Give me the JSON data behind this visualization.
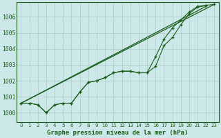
{
  "title": "Graphe pression niveau de la mer (hPa)",
  "bg_color": "#cde8e8",
  "grid_color": "#b0d0d0",
  "line_color": "#1a5c1a",
  "xlim": [
    -0.5,
    23.5
  ],
  "ylim": [
    999.4,
    1006.9
  ],
  "yticks": [
    1000,
    1001,
    1002,
    1003,
    1004,
    1005,
    1006
  ],
  "xticks": [
    0,
    1,
    2,
    3,
    4,
    5,
    6,
    7,
    8,
    9,
    10,
    11,
    12,
    13,
    14,
    15,
    16,
    17,
    18,
    19,
    20,
    21,
    22,
    23
  ],
  "x_labels": [
    "0",
    "1",
    "2",
    "3",
    "4",
    "5",
    "6",
    "7",
    "8",
    "9",
    "10",
    "11",
    "12",
    "13",
    "14",
    "15",
    "16",
    "17",
    "18",
    "19",
    "20",
    "21",
    "22",
    "23"
  ],
  "meas1_x": [
    0,
    1,
    2,
    3,
    4,
    5,
    6,
    7,
    8,
    9,
    10,
    11,
    12,
    13,
    14,
    15,
    16,
    17,
    18,
    19,
    20,
    21,
    22
  ],
  "meas1_y": [
    1000.6,
    1000.6,
    1000.5,
    1000.0,
    1000.5,
    1000.6,
    1000.6,
    1001.3,
    1001.9,
    1002.0,
    1002.2,
    1002.5,
    1002.6,
    1002.6,
    1002.5,
    1002.5,
    1002.9,
    1004.2,
    1004.7,
    1005.5,
    1006.2,
    1006.6,
    1006.7
  ],
  "meas2_x": [
    0,
    1,
    2,
    3,
    4,
    5,
    6,
    7,
    8,
    9,
    10,
    11,
    12,
    13,
    14,
    15,
    16,
    17,
    18,
    19,
    20,
    21,
    22,
    23
  ],
  "meas2_y": [
    1000.6,
    1000.6,
    1000.5,
    1000.0,
    1000.5,
    1000.6,
    1000.6,
    1001.3,
    1001.9,
    1002.0,
    1002.2,
    1002.5,
    1002.6,
    1002.6,
    1002.5,
    1002.5,
    1003.5,
    1004.6,
    1005.3,
    1005.8,
    1006.3,
    1006.65,
    1006.72,
    1006.78
  ],
  "trend1_x": [
    0,
    22
  ],
  "trend1_y": [
    1000.6,
    1006.65
  ],
  "trend2_x": [
    0,
    23
  ],
  "trend2_y": [
    1000.6,
    1006.78
  ],
  "ylabel_fontsize": 5.8,
  "xlabel_fontsize": 6.5,
  "tick_fontsize": 5.0
}
